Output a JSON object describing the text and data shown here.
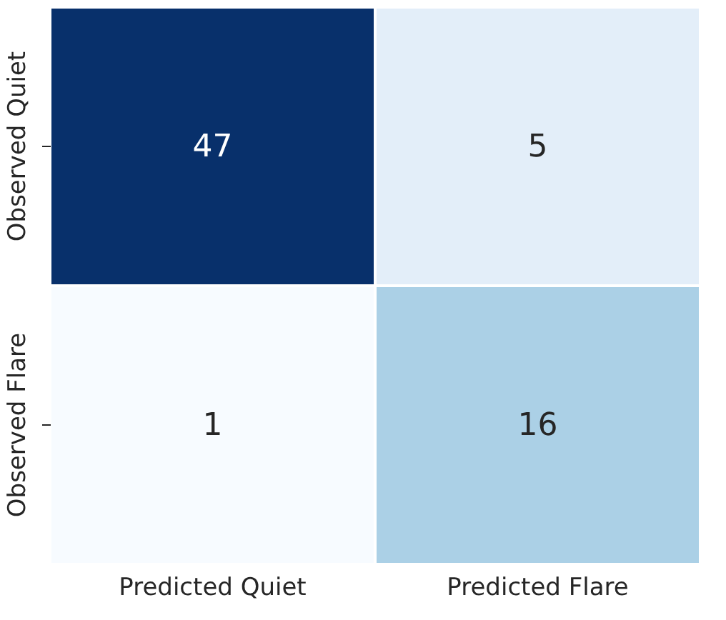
{
  "chart_data": {
    "type": "heatmap",
    "categories": [
      "Predicted Quiet",
      "Predicted Flare"
    ],
    "y_categories": [
      "Observed Quiet",
      "Observed Flare"
    ],
    "cells": [
      [
        47,
        5
      ],
      [
        1,
        16
      ]
    ],
    "colors": [
      [
        "#08306b",
        "#e3eef9"
      ],
      [
        "#f7fbff",
        "#abd0e6"
      ]
    ],
    "data_labels": true
  }
}
